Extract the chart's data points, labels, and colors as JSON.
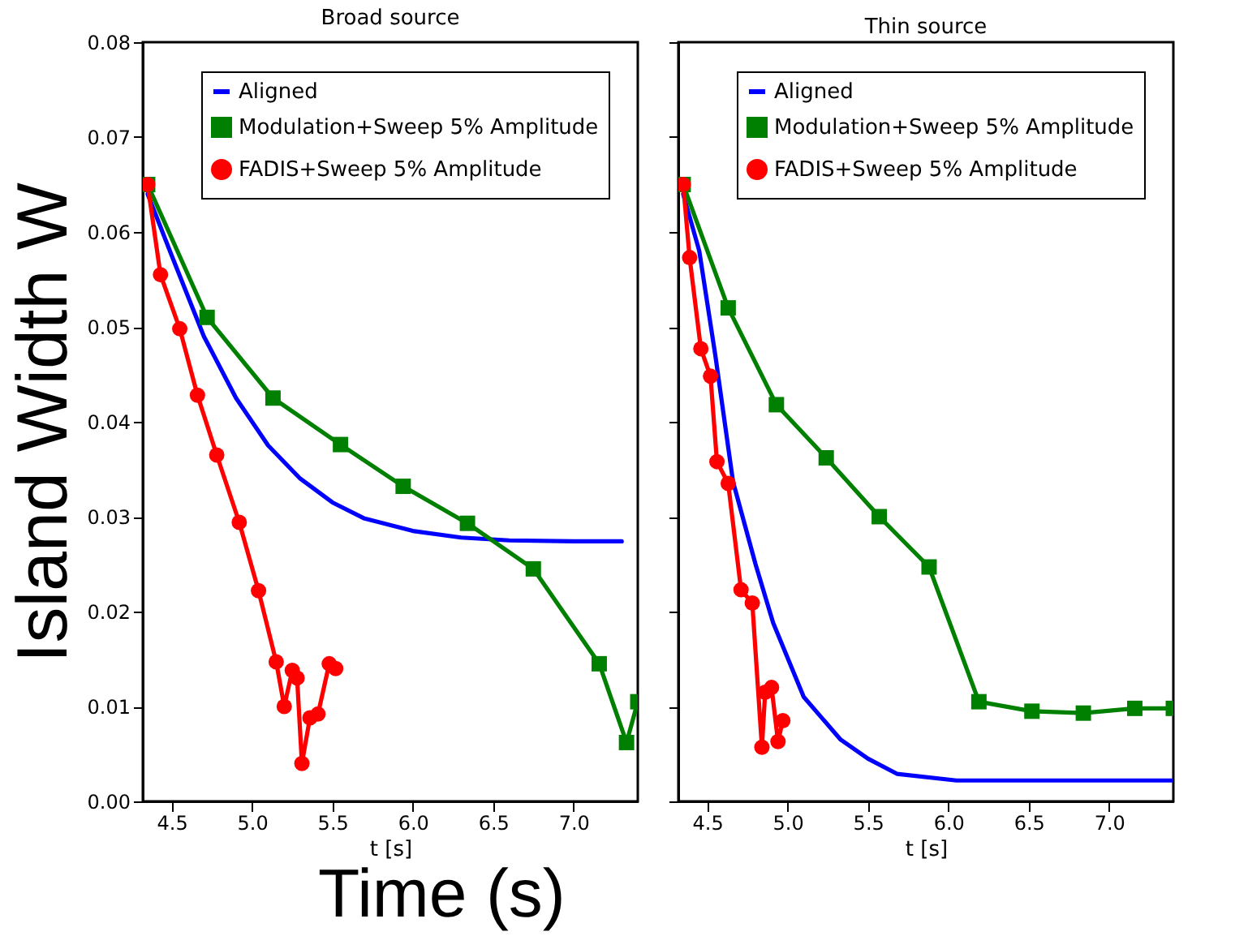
{
  "chart_data": [
    {
      "type": "line",
      "title": "Broad source",
      "xlabel": "t [s]",
      "ylabel": "Island Width W",
      "annotations": [
        "Time (s)"
      ],
      "xlim": [
        4.32,
        7.4
      ],
      "ylim": [
        0,
        0.08
      ],
      "xticks": [
        {
          "value": 4.5,
          "label": "4.5"
        },
        {
          "value": 5,
          "label": "5.0"
        },
        {
          "value": 5.5,
          "label": "5.5"
        },
        {
          "value": 6,
          "label": "6.0"
        },
        {
          "value": 6.5,
          "label": "6.5"
        },
        {
          "value": 7,
          "label": "7.0"
        }
      ],
      "yticks": [
        {
          "value": 0,
          "label": "0.00"
        },
        {
          "value": 0.01,
          "label": "0.01"
        },
        {
          "value": 0.02,
          "label": "0.02"
        },
        {
          "value": 0.03,
          "label": "0.03"
        },
        {
          "value": 0.04,
          "label": "0.04"
        },
        {
          "value": 0.05,
          "label": "0.05"
        },
        {
          "value": 0.06,
          "label": "0.06"
        },
        {
          "value": 0.07,
          "label": "0.07"
        },
        {
          "value": 0.08,
          "label": "0.08"
        }
      ],
      "legend": "top right",
      "grid": false,
      "line_style": "solid",
      "series": [
        {
          "name": "Aligned",
          "color": "#0000ff",
          "marker": "none",
          "x": [
            4.35,
            4.5,
            4.7,
            4.9,
            5.1,
            5.3,
            5.5,
            5.7,
            6.0,
            6.3,
            6.6,
            7.0,
            7.3
          ],
          "values": [
            0.064,
            0.0575,
            0.049,
            0.0425,
            0.0375,
            0.034,
            0.0315,
            0.0298,
            0.0285,
            0.0278,
            0.0275,
            0.0274,
            0.0274
          ]
        },
        {
          "name": "Modulation+Sweep 5% Amplitude",
          "color": "#008000",
          "marker": "square",
          "x": [
            4.35,
            4.72,
            5.13,
            5.55,
            5.94,
            6.34,
            6.75,
            7.16,
            7.33,
            7.4
          ],
          "values": [
            0.065,
            0.051,
            0.0425,
            0.0376,
            0.0332,
            0.0293,
            0.0245,
            0.0145,
            0.0062,
            0.0105
          ]
        },
        {
          "name": "FADIS+Sweep 5% Amplitude",
          "color": "#ff0000",
          "marker": "circle",
          "x": [
            4.35,
            4.43,
            4.55,
            4.66,
            4.78,
            4.92,
            5.04,
            5.15,
            5.2,
            5.25,
            5.28,
            5.31,
            5.36,
            5.41,
            5.48,
            5.52
          ],
          "values": [
            0.065,
            0.0555,
            0.0498,
            0.0428,
            0.0365,
            0.0294,
            0.0222,
            0.0147,
            0.01,
            0.0138,
            0.013,
            0.004,
            0.0088,
            0.0092,
            0.0145,
            0.014
          ]
        }
      ]
    },
    {
      "type": "line",
      "title": "Thin source",
      "xlabel": "t [s]",
      "xlim": [
        4.32,
        7.4
      ],
      "ylim": [
        0,
        0.08
      ],
      "tick_labels": "x",
      "xticks": [
        {
          "value": 4.5,
          "label": "4.5"
        },
        {
          "value": 5,
          "label": "5.0"
        },
        {
          "value": 5.5,
          "label": "5.5"
        },
        {
          "value": 6,
          "label": "6.0"
        },
        {
          "value": 6.5,
          "label": "6.5"
        },
        {
          "value": 7,
          "label": "7.0"
        }
      ],
      "yticks": [
        {
          "value": 0,
          "label": null
        },
        {
          "value": 0.01,
          "label": null
        },
        {
          "value": 0.02,
          "label": null
        },
        {
          "value": 0.03,
          "label": null
        },
        {
          "value": 0.04,
          "label": null
        },
        {
          "value": 0.05,
          "label": null
        },
        {
          "value": 0.06,
          "label": null
        },
        {
          "value": 0.07,
          "label": null
        },
        {
          "value": 0.08,
          "label": null
        }
      ],
      "legend": "top right",
      "grid": false,
      "line_style": "solid",
      "series": [
        {
          "name": "Aligned",
          "color": "#0000ff",
          "marker": "none",
          "x": [
            4.35,
            4.45,
            4.55,
            4.66,
            4.8,
            4.91,
            5.1,
            5.33,
            5.5,
            5.68,
            6.05,
            6.5,
            7.0,
            7.4
          ],
          "values": [
            0.064,
            0.058,
            0.047,
            0.0337,
            0.025,
            0.0188,
            0.011,
            0.0065,
            0.0045,
            0.0029,
            0.0022,
            0.0022,
            0.0022,
            0.0022
          ]
        },
        {
          "name": "Modulation+Sweep 5% Amplitude",
          "color": "#008000",
          "marker": "square",
          "x": [
            4.35,
            4.63,
            4.93,
            5.24,
            5.57,
            5.88,
            6.19,
            6.52,
            6.84,
            7.16,
            7.4
          ],
          "values": [
            0.065,
            0.052,
            0.0418,
            0.0362,
            0.03,
            0.0247,
            0.0105,
            0.0095,
            0.0093,
            0.0098,
            0.0098
          ]
        },
        {
          "name": "FADIS+Sweep 5% Amplitude",
          "color": "#ff0000",
          "marker": "circle",
          "x": [
            4.35,
            4.39,
            4.46,
            4.52,
            4.56,
            4.63,
            4.71,
            4.78,
            4.84,
            4.86,
            4.9,
            4.94,
            4.97
          ],
          "values": [
            0.065,
            0.0573,
            0.0477,
            0.0448,
            0.0358,
            0.0335,
            0.0223,
            0.0209,
            0.0057,
            0.0115,
            0.012,
            0.0063,
            0.0085
          ]
        }
      ]
    }
  ]
}
